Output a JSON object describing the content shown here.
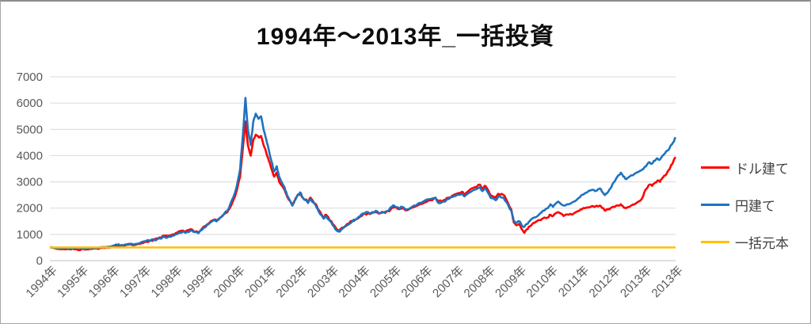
{
  "chart_data": {
    "type": "line",
    "title": "1994年〜2013年_一括投資",
    "xlabel": "",
    "ylabel": "",
    "xlim": [
      1994,
      2014
    ],
    "ylim": [
      0,
      7000
    ],
    "grid": true,
    "legend_position": "right",
    "y_ticks": [
      0,
      1000,
      2000,
      3000,
      4000,
      5000,
      6000,
      7000
    ],
    "x_tick_labels": [
      "1994年",
      "1995年",
      "1996年",
      "1997年",
      "1998年",
      "1999年",
      "2000年",
      "2001年",
      "2002年",
      "2003年",
      "2004年",
      "2005年",
      "2006年",
      "2007年",
      "2008年",
      "2009年",
      "2010年",
      "2011年",
      "2012年",
      "2013年",
      "2013年"
    ],
    "colors": {
      "gridline": "#d9d9d9",
      "axis_line": "#bfbfbf",
      "tick_label": "#595959",
      "title": "#0d0d0d"
    },
    "x": [
      1994.0,
      1994.17,
      1994.33,
      1994.5,
      1994.67,
      1994.83,
      1995.0,
      1995.17,
      1995.33,
      1995.5,
      1995.67,
      1995.83,
      1996.0,
      1996.17,
      1996.25,
      1996.42,
      1996.58,
      1996.75,
      1996.92,
      1997.08,
      1997.25,
      1997.33,
      1997.5,
      1997.67,
      1997.75,
      1997.92,
      1998.08,
      1998.25,
      1998.33,
      1998.5,
      1998.58,
      1998.75,
      1998.92,
      1999.08,
      1999.25,
      1999.33,
      1999.5,
      1999.67,
      1999.75,
      1999.92,
      2000.0,
      2000.08,
      2000.17,
      2000.25,
      2000.33,
      2000.42,
      2000.5,
      2000.58,
      2000.67,
      2000.75,
      2000.83,
      2000.92,
      2001.0,
      2001.08,
      2001.17,
      2001.25,
      2001.33,
      2001.5,
      2001.58,
      2001.75,
      2001.83,
      2001.92,
      2002.0,
      2002.08,
      2002.25,
      2002.33,
      2002.5,
      2002.58,
      2002.75,
      2002.83,
      2002.92,
      2003.0,
      2003.08,
      2003.17,
      2003.25,
      2003.33,
      2003.5,
      2003.67,
      2003.75,
      2003.92,
      2004.0,
      2004.17,
      2004.25,
      2004.42,
      2004.5,
      2004.67,
      2004.83,
      2004.92,
      2005.0,
      2005.17,
      2005.25,
      2005.42,
      2005.58,
      2005.75,
      2005.92,
      2006.0,
      2006.17,
      2006.33,
      2006.42,
      2006.58,
      2006.75,
      2006.92,
      2007.0,
      2007.17,
      2007.25,
      2007.42,
      2007.58,
      2007.75,
      2007.83,
      2007.92,
      2008.0,
      2008.08,
      2008.25,
      2008.33,
      2008.5,
      2008.58,
      2008.75,
      2008.83,
      2008.92,
      2009.0,
      2009.08,
      2009.17,
      2009.25,
      2009.33,
      2009.5,
      2009.67,
      2009.75,
      2009.92,
      2010.0,
      2010.08,
      2010.25,
      2010.42,
      2010.58,
      2010.75,
      2010.92,
      2011.0,
      2011.17,
      2011.33,
      2011.42,
      2011.58,
      2011.67,
      2011.75,
      2011.83,
      2011.92,
      2012.0,
      2012.17,
      2012.25,
      2012.33,
      2012.42,
      2012.58,
      2012.75,
      2012.92,
      2013.0,
      2013.08,
      2013.17,
      2013.25,
      2013.33,
      2013.42,
      2013.5,
      2013.58,
      2013.67,
      2013.75,
      2013.83,
      2013.92,
      2014.0
    ],
    "series": [
      {
        "name": "ドル建て",
        "color": "#ff0000",
        "values": [
          500,
          468,
          442,
          432,
          425,
          438,
          422,
          432,
          448,
          465,
          482,
          502,
          540,
          572,
          556,
          592,
          615,
          602,
          662,
          722,
          772,
          792,
          880,
          948,
          928,
          1000,
          1078,
          1148,
          1108,
          1198,
          1128,
          1078,
          1298,
          1418,
          1558,
          1518,
          1678,
          1848,
          1998,
          2448,
          2798,
          3198,
          4298,
          5300,
          4398,
          3998,
          4598,
          4798,
          4698,
          4748,
          4398,
          4098,
          3798,
          3498,
          3198,
          3348,
          2998,
          2698,
          2448,
          2098,
          2298,
          2498,
          2548,
          2398,
          2248,
          2398,
          2148,
          1948,
          1648,
          1748,
          1598,
          1498,
          1348,
          1198,
          1148,
          1248,
          1398,
          1518,
          1558,
          1678,
          1748,
          1798,
          1778,
          1848,
          1798,
          1838,
          1878,
          1998,
          2028,
          1958,
          1998,
          1918,
          2018,
          2098,
          2178,
          2218,
          2298,
          2378,
          2248,
          2298,
          2398,
          2498,
          2548,
          2618,
          2518,
          2698,
          2798,
          2898,
          2748,
          2848,
          2698,
          2498,
          2398,
          2548,
          2498,
          2348,
          1948,
          1448,
          1348,
          1398,
          1198,
          1058,
          1198,
          1298,
          1448,
          1548,
          1598,
          1648,
          1748,
          1698,
          1848,
          1698,
          1748,
          1798,
          1898,
          1948,
          2028,
          2078,
          2048,
          2098,
          1998,
          1898,
          1948,
          1998,
          2048,
          2098,
          2148,
          2048,
          1998,
          2098,
          2198,
          2348,
          2598,
          2748,
          2898,
          2848,
          2948,
          3048,
          2998,
          3148,
          3248,
          3398,
          3548,
          3748,
          3948
        ]
      },
      {
        "name": "円建て",
        "color": "#1f72bf",
        "values": [
          500,
          490,
          472,
          478,
          462,
          472,
          465,
          455,
          470,
          492,
          508,
          522,
          558,
          598,
          582,
          620,
          648,
          638,
          700,
          758,
          800,
          782,
          848,
          898,
          878,
          948,
          1018,
          1098,
          1058,
          1148,
          1098,
          1048,
          1248,
          1398,
          1548,
          1498,
          1698,
          1898,
          2098,
          2598,
          2998,
          3498,
          4798,
          6200,
          4998,
          4398,
          5298,
          5598,
          5398,
          5498,
          4998,
          4598,
          4198,
          3798,
          3398,
          3598,
          3198,
          2798,
          2498,
          2098,
          2298,
          2498,
          2598,
          2398,
          2198,
          2348,
          2098,
          1898,
          1598,
          1698,
          1548,
          1448,
          1298,
          1148,
          1098,
          1198,
          1348,
          1498,
          1548,
          1698,
          1798,
          1848,
          1798,
          1898,
          1818,
          1848,
          1898,
          2048,
          2098,
          1998,
          2048,
          1948,
          2048,
          2148,
          2248,
          2298,
          2348,
          2398,
          2198,
          2248,
          2348,
          2448,
          2498,
          2548,
          2448,
          2598,
          2698,
          2798,
          2648,
          2748,
          2598,
          2398,
          2298,
          2448,
          2398,
          2248,
          1898,
          1498,
          1448,
          1498,
          1348,
          1288,
          1398,
          1498,
          1648,
          1798,
          1898,
          1998,
          2148,
          2048,
          2248,
          2098,
          2148,
          2248,
          2398,
          2498,
          2598,
          2698,
          2648,
          2748,
          2598,
          2498,
          2598,
          2748,
          2948,
          3248,
          3348,
          3198,
          3098,
          3248,
          3348,
          3448,
          3548,
          3648,
          3748,
          3698,
          3798,
          3898,
          3848,
          3998,
          4098,
          4198,
          4348,
          4498,
          4698
        ]
      },
      {
        "name": "一括元本",
        "color": "#ffc000",
        "constant_value": 500
      }
    ]
  }
}
